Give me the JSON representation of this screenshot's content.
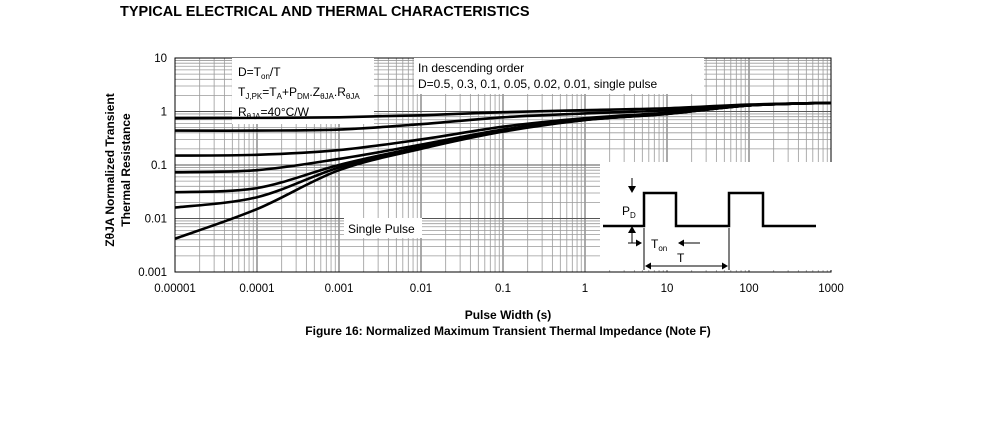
{
  "page": {
    "section_title": "TYPICAL ELECTRICAL AND THERMAL CHARACTERISTICS",
    "figure_caption": "Figure 16: Normalized Maximum Transient Thermal Impedance (Note F)"
  },
  "chart_data": {
    "type": "line",
    "title": "",
    "xlabel": "Pulse Width (s)",
    "ylabel_line1": "ZθJA Normalized Transient",
    "ylabel_line2": "Thermal Resistance",
    "xscale": "log",
    "yscale": "log",
    "xlim": [
      1e-05,
      1000
    ],
    "ylim": [
      0.001,
      10
    ],
    "grid": true,
    "x_tick_labels": [
      "0.00001",
      "0.0001",
      "0.001",
      "0.01",
      "0.1",
      "1",
      "10",
      "100",
      "1000"
    ],
    "y_tick_labels": [
      "10",
      "1",
      "0.1",
      "0.01",
      "0.001"
    ],
    "x_ticks": [
      1e-05,
      0.0001,
      0.001,
      0.01,
      0.1,
      1,
      10,
      100,
      1000
    ],
    "y_ticks": [
      10,
      1,
      0.1,
      0.01,
      0.001
    ],
    "series": [
      {
        "values": [
          [
            1e-05,
            0.75
          ],
          [
            0.0001,
            0.76
          ],
          [
            0.001,
            0.78
          ],
          [
            0.01,
            0.85
          ],
          [
            0.1,
            0.97
          ],
          [
            1,
            1.06
          ],
          [
            10,
            1.15
          ],
          [
            100,
            1.35
          ],
          [
            1000,
            1.45
          ]
        ]
      },
      {
        "values": [
          [
            1e-05,
            0.44
          ],
          [
            0.0001,
            0.44
          ],
          [
            0.001,
            0.46
          ],
          [
            0.01,
            0.58
          ],
          [
            0.1,
            0.78
          ],
          [
            1,
            0.92
          ],
          [
            10,
            1.05
          ],
          [
            100,
            1.32
          ],
          [
            1000,
            1.45
          ]
        ]
      },
      {
        "values": [
          [
            1e-05,
            0.15
          ],
          [
            0.0001,
            0.155
          ],
          [
            0.001,
            0.19
          ],
          [
            0.01,
            0.3
          ],
          [
            0.1,
            0.52
          ],
          [
            1,
            0.75
          ],
          [
            10,
            0.95
          ],
          [
            100,
            1.3
          ],
          [
            1000,
            1.45
          ]
        ]
      },
      {
        "values": [
          [
            1e-05,
            0.073
          ],
          [
            0.0001,
            0.08
          ],
          [
            0.001,
            0.13
          ],
          [
            0.01,
            0.24
          ],
          [
            0.1,
            0.46
          ],
          [
            1,
            0.72
          ],
          [
            10,
            0.92
          ],
          [
            100,
            1.3
          ],
          [
            1000,
            1.45
          ]
        ]
      },
      {
        "values": [
          [
            1e-05,
            0.031
          ],
          [
            0.0001,
            0.037
          ],
          [
            0.001,
            0.1
          ],
          [
            0.01,
            0.22
          ],
          [
            0.1,
            0.44
          ],
          [
            1,
            0.7
          ],
          [
            10,
            0.91
          ],
          [
            100,
            1.3
          ],
          [
            1000,
            1.45
          ]
        ]
      },
      {
        "values": [
          [
            1e-05,
            0.016
          ],
          [
            0.0001,
            0.025
          ],
          [
            0.001,
            0.09
          ],
          [
            0.01,
            0.21
          ],
          [
            0.1,
            0.43
          ],
          [
            1,
            0.7
          ],
          [
            10,
            0.9
          ],
          [
            100,
            1.3
          ],
          [
            1000,
            1.45
          ]
        ]
      },
      {
        "values": [
          [
            1e-05,
            0.0042
          ],
          [
            0.0001,
            0.015
          ],
          [
            0.001,
            0.08
          ],
          [
            0.01,
            0.2
          ],
          [
            0.1,
            0.42
          ],
          [
            1,
            0.69
          ],
          [
            10,
            0.9
          ],
          [
            100,
            1.3
          ],
          [
            1000,
            1.45
          ]
        ]
      }
    ],
    "annotations": {
      "duty_def_pre": "D=T",
      "duty_def_sub": "on",
      "duty_def_post": "/T",
      "tj_a": "T",
      "tj_a_sub": "J,PK",
      "tj_b": "=T",
      "tj_b_sub": "A",
      "tj_c": "+P",
      "tj_c_sub": "DM",
      "tj_d": ".Z",
      "tj_d_sub": "θJA",
      "tj_e": ".R",
      "tj_e_sub": "θJA",
      "rth_pre": "R",
      "rth_sub": "θJA",
      "rth_post": "=40°C/W",
      "order_line1": "In descending order",
      "order_line2": "D=0.5, 0.3, 0.1, 0.05, 0.02, 0.01, single pulse",
      "single_pulse": "Single Pulse",
      "inset_pd": "P",
      "inset_pd_sub": "D",
      "inset_ton": "T",
      "inset_ton_sub": "on",
      "inset_t": "T"
    }
  }
}
